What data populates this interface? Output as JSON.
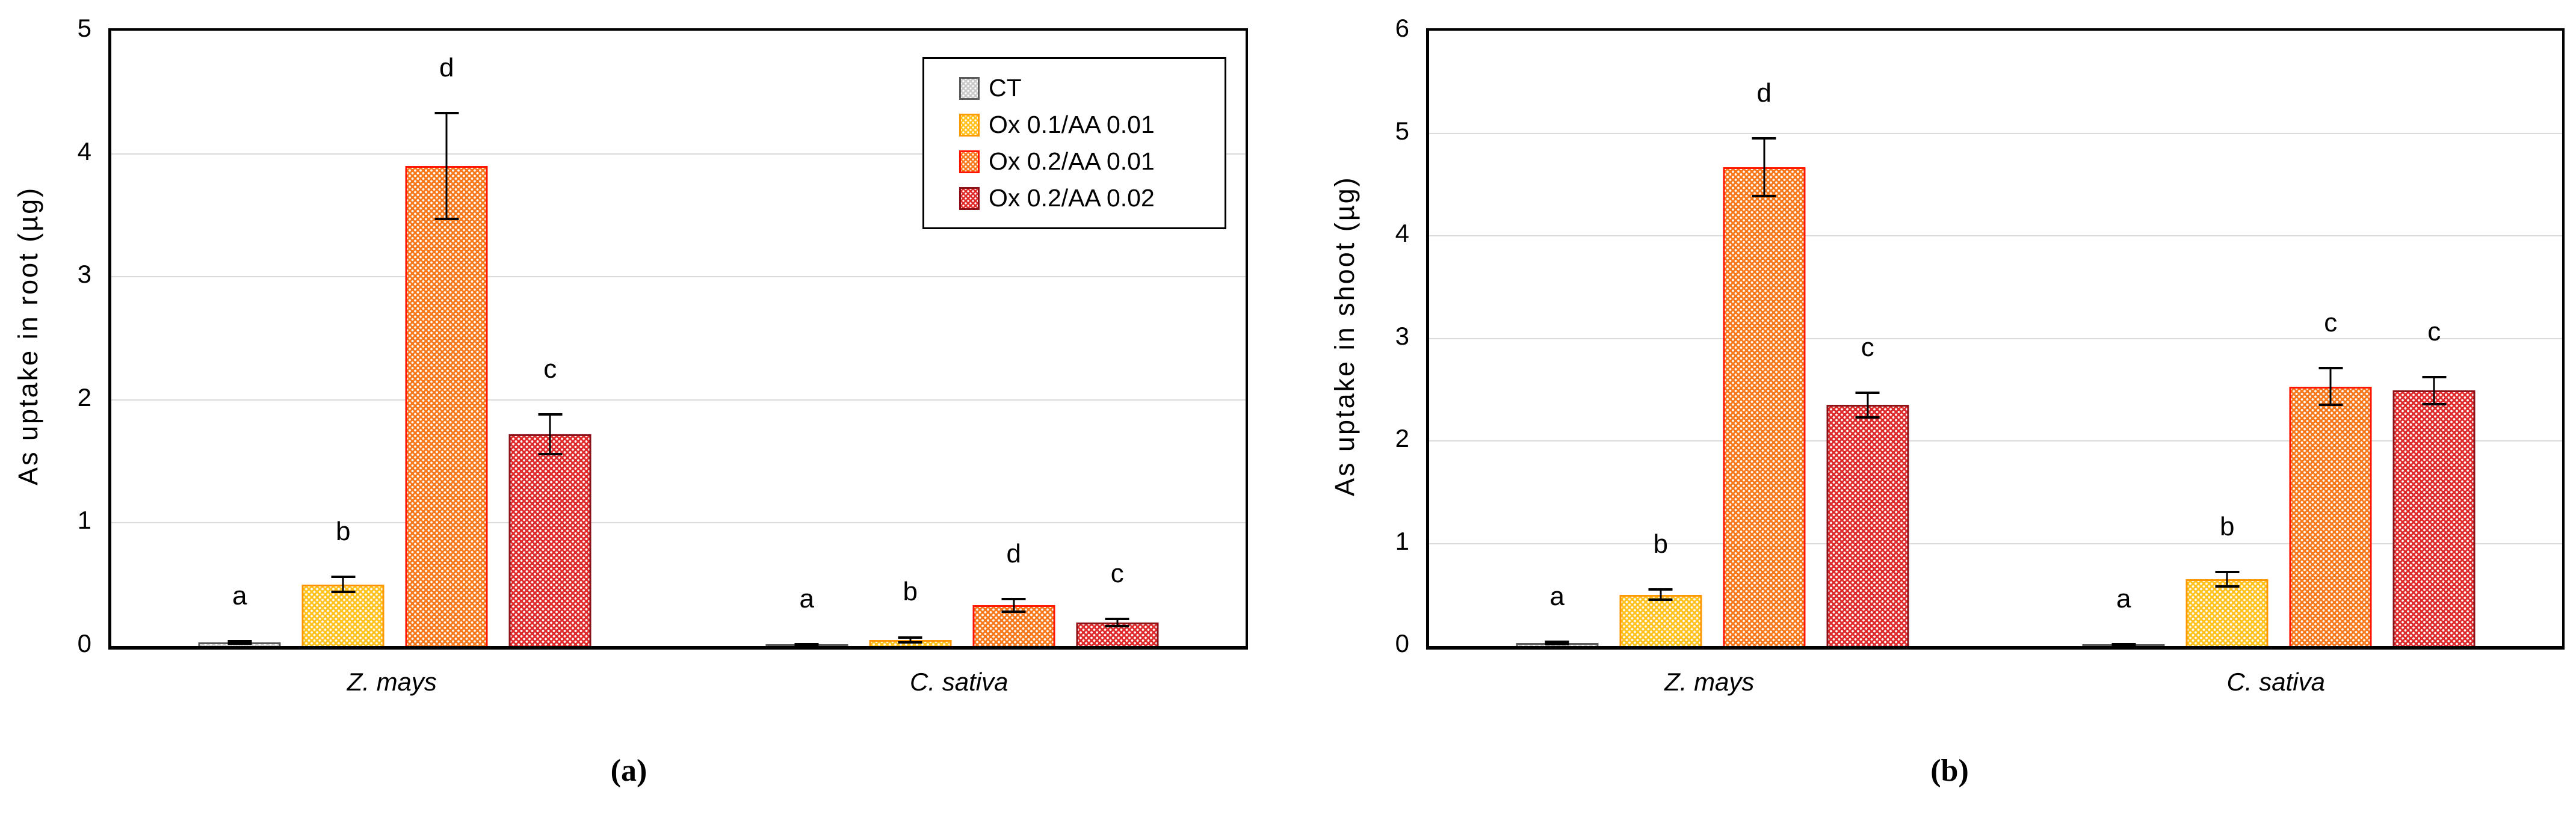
{
  "figure": {
    "captions": {
      "a": "(a)",
      "b": "(b)"
    },
    "colors": {
      "background": "#FFFFFF",
      "gridline": "#DADADA",
      "axis": "#000000",
      "error_bar": "#000000"
    },
    "series_styles": [
      {
        "name": "CT",
        "fill": "#C9C9C9",
        "border": "#5A5A5A",
        "dot": "#FFFFFF"
      },
      {
        "name": "Ox 0.1/AA 0.01",
        "fill": "#FFC21E",
        "border": "#FF9800",
        "dot": "#FFFFFF"
      },
      {
        "name": "Ox 0.2/AA 0.01",
        "fill": "#F8781C",
        "border": "#FF1500",
        "dot": "#FFFFFF"
      },
      {
        "name": "Ox 0.2/AA 0.02",
        "fill": "#DF2B2B",
        "border": "#8C1218",
        "dot": "#FFFFFF"
      }
    ]
  },
  "chart_data": [
    {
      "id": "a",
      "type": "bar",
      "title": "",
      "ylabel": "As uptake in root (µg)",
      "xlabel": "",
      "ylim": [
        0,
        5
      ],
      "yticks": [
        "0",
        "1",
        "2",
        "3",
        "4",
        "5"
      ],
      "grid": true,
      "legend_visible": true,
      "legend_position": "top-right",
      "categories": [
        "Z. mays",
        "C. sativa"
      ],
      "series": [
        {
          "name": "CT",
          "values": [
            0.03,
            0.01
          ],
          "errors": [
            0.01,
            0.005
          ],
          "letters": [
            "a",
            "a"
          ]
        },
        {
          "name": "Ox 0.1/AA 0.01",
          "values": [
            0.5,
            0.05
          ],
          "errors": [
            0.06,
            0.02
          ],
          "letters": [
            "b",
            "b"
          ]
        },
        {
          "name": "Ox 0.2/AA 0.01",
          "values": [
            3.9,
            0.33
          ],
          "errors": [
            0.43,
            0.05
          ],
          "letters": [
            "d",
            "d"
          ]
        },
        {
          "name": "Ox 0.2/AA 0.02",
          "values": [
            1.72,
            0.19
          ],
          "errors": [
            0.16,
            0.03
          ],
          "letters": [
            "c",
            "c"
          ]
        }
      ]
    },
    {
      "id": "b",
      "type": "bar",
      "title": "",
      "ylabel": "As uptake in shoot (µg)",
      "xlabel": "",
      "ylim": [
        0,
        6
      ],
      "yticks": [
        "0",
        "1",
        "2",
        "3",
        "4",
        "5",
        "6"
      ],
      "grid": true,
      "legend_visible": false,
      "categories": [
        "Z. mays",
        "C. sativa"
      ],
      "series": [
        {
          "name": "CT",
          "values": [
            0.03,
            0.01
          ],
          "errors": [
            0.01,
            0.005
          ],
          "letters": [
            "a",
            "a"
          ]
        },
        {
          "name": "Ox 0.1/AA 0.01",
          "values": [
            0.5,
            0.65
          ],
          "errors": [
            0.05,
            0.07
          ],
          "letters": [
            "b",
            "b"
          ]
        },
        {
          "name": "Ox 0.2/AA 0.01",
          "values": [
            4.67,
            2.53
          ],
          "errors": [
            0.28,
            0.18
          ],
          "letters": [
            "d",
            "c"
          ]
        },
        {
          "name": "Ox 0.2/AA 0.02",
          "values": [
            2.35,
            2.49
          ],
          "errors": [
            0.12,
            0.13
          ],
          "letters": [
            "c",
            "c"
          ]
        }
      ]
    }
  ]
}
